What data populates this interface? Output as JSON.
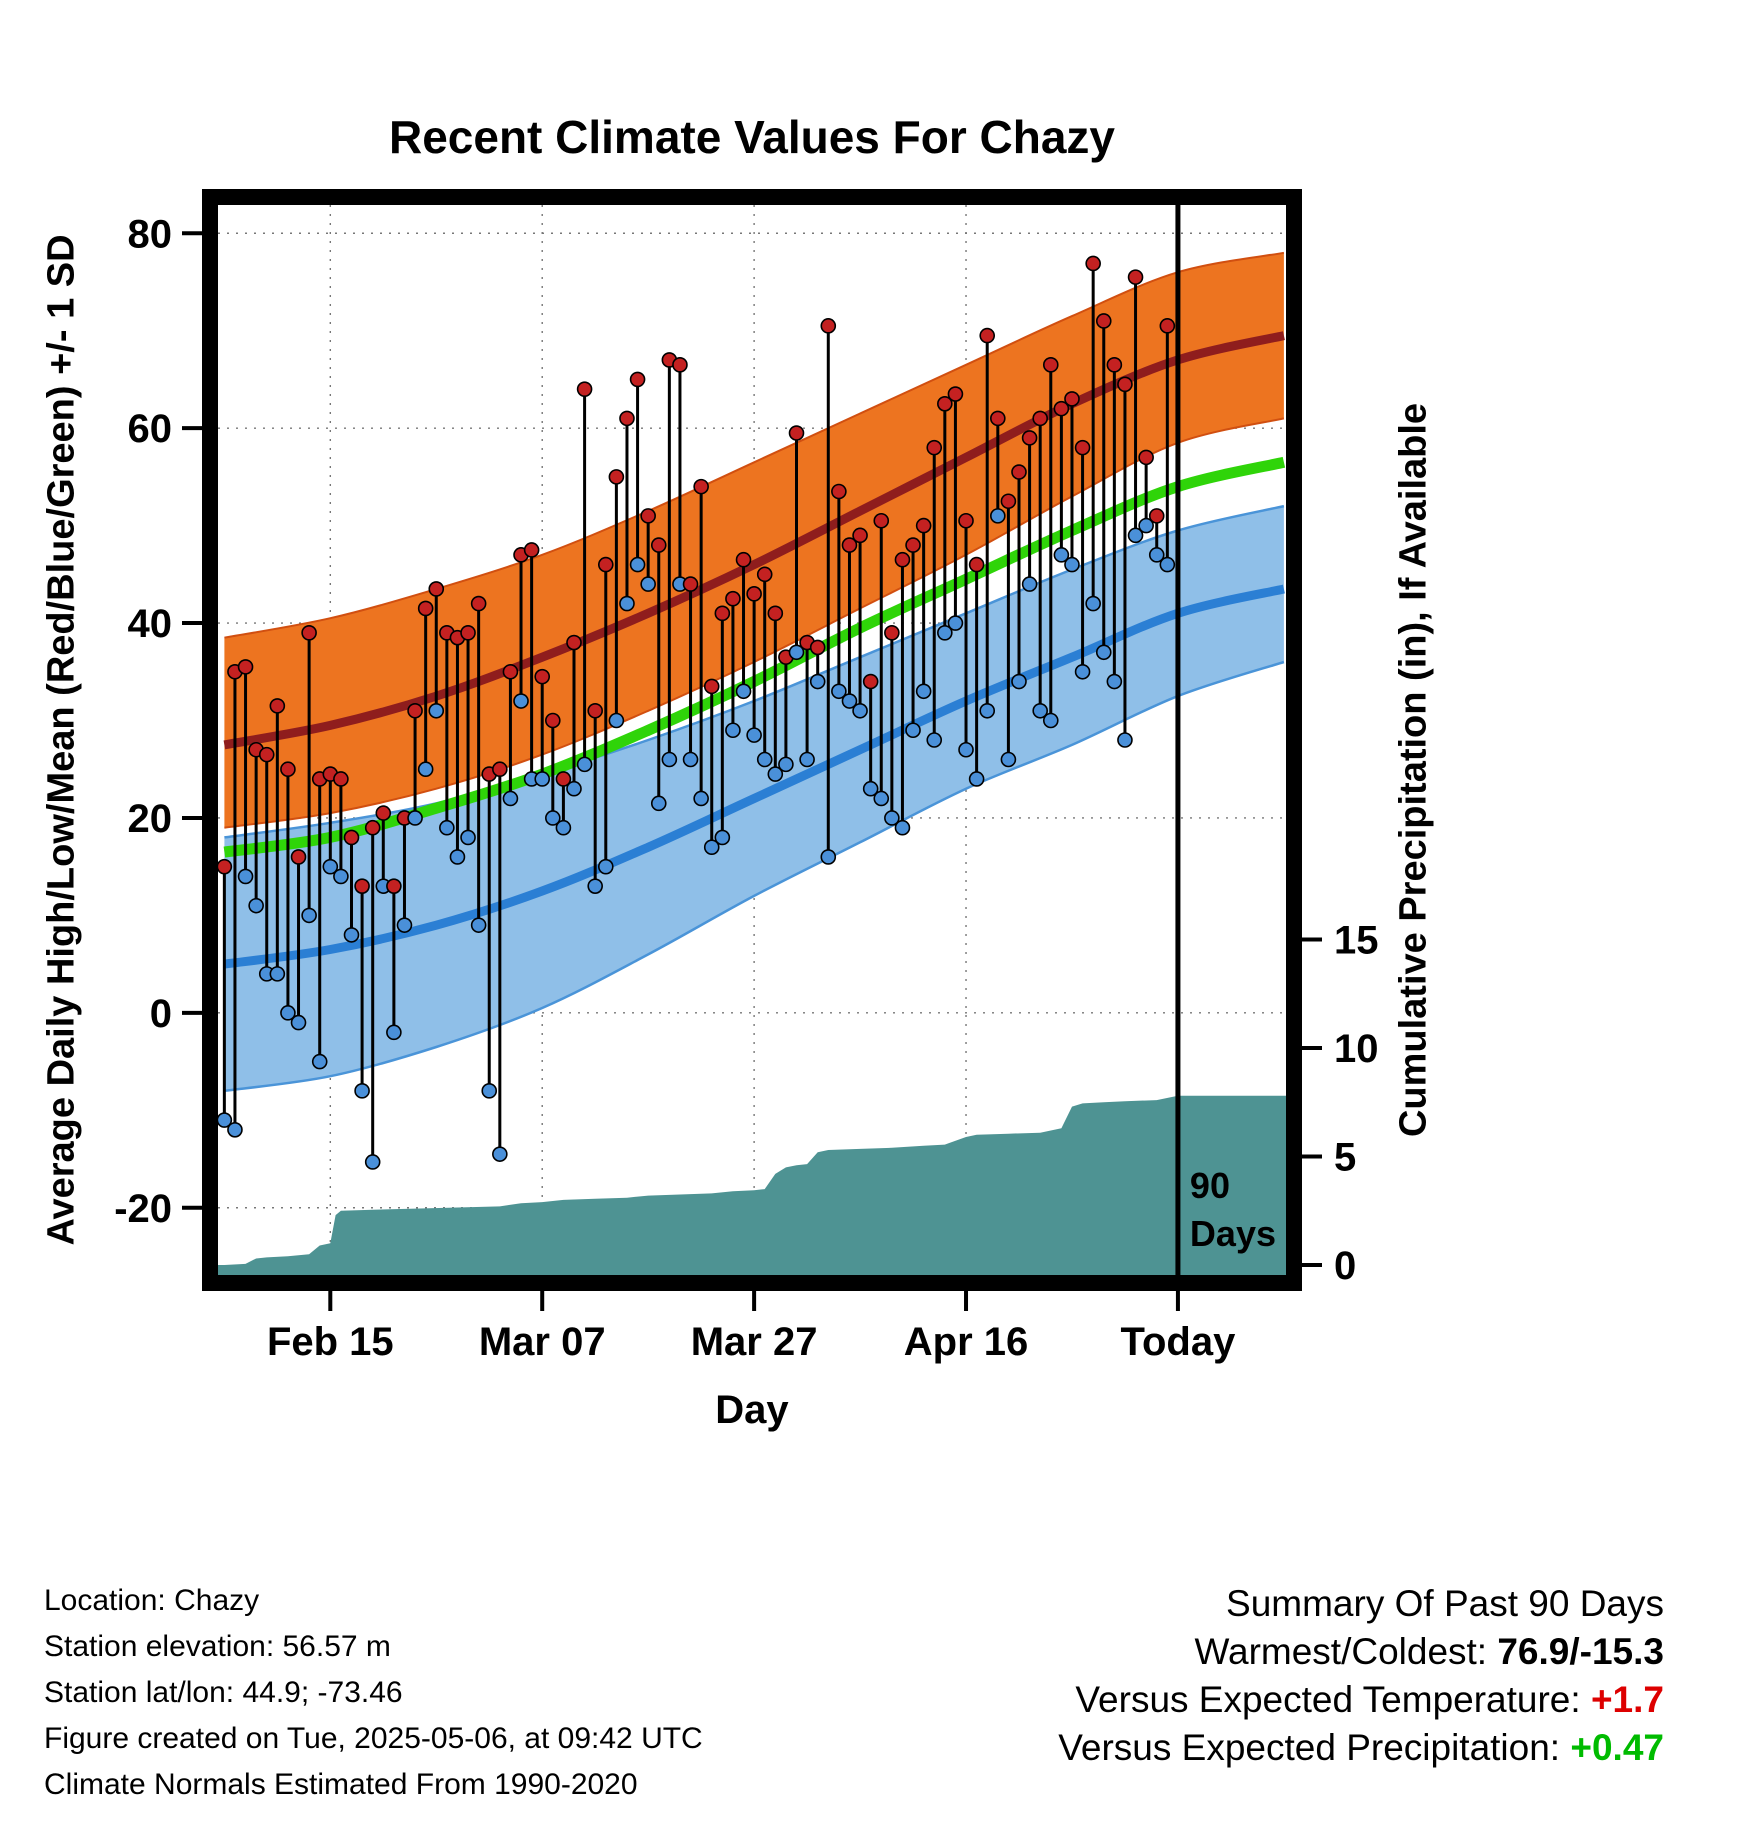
{
  "title": "Recent Climate Values For Chazy",
  "left_axis_label": "Average Daily High/Low/Mean (Red/Blue/Green) +/- 1 SD",
  "right_axis_label": "Cumulative Precipitation (in), If Available",
  "x_axis_label": "Day",
  "annotation": {
    "day": 90,
    "lines": [
      "90",
      "Days"
    ]
  },
  "footer": {
    "location": "Location: Chazy",
    "elevation": "Station elevation: 56.57 m",
    "latlon": "Station lat/lon: 44.9; -73.46",
    "created": "Figure created on Tue, 2025-05-06, at 09:42 UTC",
    "normals": "Climate Normals Estimated From 1990-2020"
  },
  "summary": {
    "heading": "Summary Of Past 90 Days",
    "warmest_coldest_label": "Warmest/Coldest:",
    "warmest_coldest_value": "76.9/-15.3",
    "vs_temp_label": "Versus Expected Temperature:",
    "vs_temp_value": "+1.7",
    "vs_precip_label": "Versus Expected Precipitation:",
    "vs_precip_value": "+0.47"
  },
  "colors": {
    "high_band": "#ED7420",
    "high_band_edge": "#D14F10",
    "high_line": "#8F1D1D",
    "low_band": "#8FBFE8",
    "low_band_edge": "#4A94D8",
    "low_line": "#2B7FD4",
    "mean_line": "#2FD409",
    "precip_fill": "#4E9393",
    "stem": "#000000",
    "high_dot": "#C42121",
    "low_dot": "#4A90D9",
    "grid": "#777777",
    "vs_temp": "#DD0000",
    "vs_precip": "#00BB00"
  },
  "chart_data": {
    "type": "line",
    "title": "Recent Climate Values For Chazy",
    "xlabel": "Day",
    "ylabel_left": "Average Daily High/Low/Mean (Red/Blue/Green) +/- 1 SD",
    "ylabel_right": "Cumulative Precipitation (in), If Available",
    "xlim_days": [
      -0.6,
      100.2
    ],
    "ylim_left": [
      -26.9,
      82.9
    ],
    "ylim_right": [
      -0.46,
      48.85
    ],
    "x_ticks": [
      {
        "day": 10,
        "label": "Feb 15"
      },
      {
        "day": 30,
        "label": "Mar 07"
      },
      {
        "day": 50,
        "label": "Mar 27"
      },
      {
        "day": 70,
        "label": "Apr 16"
      },
      {
        "day": 90,
        "label": "Today"
      }
    ],
    "y_ticks_left": [
      80,
      60,
      40,
      20,
      0,
      -20
    ],
    "y_ticks_right": [
      15,
      10,
      5,
      0
    ],
    "climatology": {
      "days": [
        0,
        10,
        20,
        30,
        40,
        50,
        60,
        70,
        80,
        90,
        100
      ],
      "high_upper": [
        38.5,
        40.5,
        43.5,
        47,
        51.5,
        56.5,
        61.5,
        66.5,
        71.5,
        76,
        78
      ],
      "high_mean": [
        27.5,
        29.5,
        32.5,
        36.5,
        41,
        46,
        51.5,
        57,
        62.5,
        67,
        69.5
      ],
      "high_lower": [
        19,
        20.5,
        23,
        26.5,
        31,
        36,
        41.5,
        47,
        53,
        58.5,
        61
      ],
      "low_upper": [
        18,
        19.5,
        21.5,
        24.5,
        28,
        32,
        36.5,
        41,
        45.5,
        49.5,
        52
      ],
      "low_mean": [
        5,
        6.5,
        9,
        12.5,
        17,
        22,
        27,
        32,
        36.5,
        41,
        43.5
      ],
      "low_lower": [
        -8,
        -6.5,
        -3.5,
        0.5,
        6,
        12,
        17.5,
        23,
        27.5,
        32.5,
        36
      ],
      "mean": [
        16.5,
        18,
        21,
        24.5,
        29,
        34,
        39.5,
        44.5,
        49.5,
        54,
        56.5
      ]
    },
    "daily": {
      "first_day_index": 0,
      "high": [
        15,
        35,
        35.5,
        27,
        26.5,
        31.5,
        25,
        16,
        39,
        24,
        24.5,
        24,
        18,
        13,
        19,
        20.5,
        13,
        20,
        31,
        41.5,
        43.5,
        39,
        38.5,
        39,
        42,
        24.5,
        25,
        35,
        47,
        47.5,
        34.5,
        30,
        24,
        38,
        64,
        31,
        46,
        55,
        61,
        65,
        51,
        48,
        67,
        66.5,
        44,
        54,
        33.5,
        41,
        42.5,
        46.5,
        43,
        45,
        41,
        36.5,
        59.5,
        38,
        37.5,
        70.5,
        53.5,
        48,
        49,
        34,
        50.5,
        39,
        46.5,
        48,
        50,
        58,
        62.5,
        63.5,
        50.5,
        46,
        69.5,
        61,
        52.5,
        55.5,
        59,
        61,
        66.5,
        62,
        63,
        58,
        76.9,
        71,
        66.5,
        64.5,
        75.5,
        57,
        51,
        70.5
      ],
      "low": [
        -11,
        -12,
        14,
        11,
        4,
        4,
        0,
        -1,
        10,
        -5,
        15,
        14,
        8,
        -8,
        -15.3,
        13,
        -2,
        9,
        20,
        25,
        31,
        19,
        16,
        18,
        9,
        -8,
        -14.5,
        22,
        32,
        24,
        24,
        20,
        19,
        23,
        25.5,
        13,
        15,
        30,
        42,
        46,
        44,
        21.5,
        26,
        44,
        26,
        22,
        17,
        18,
        29,
        33,
        28.5,
        26,
        24.5,
        25.5,
        37,
        26,
        34,
        16,
        33,
        32,
        31,
        23,
        22,
        20,
        19,
        29,
        33,
        28,
        39,
        40,
        27,
        24,
        31,
        51,
        26,
        34,
        44,
        31,
        30,
        47,
        46,
        35,
        42,
        37,
        34,
        28,
        49,
        50,
        47,
        46
      ]
    },
    "cumulative_precip": {
      "days": [
        0,
        2,
        3,
        4,
        6,
        7,
        8,
        9,
        10,
        10.5,
        11,
        14,
        18,
        22,
        26,
        28,
        30,
        32,
        35,
        38,
        40,
        43,
        46,
        48,
        50,
        51,
        52,
        53,
        54,
        55,
        56,
        57,
        60,
        63,
        66,
        68,
        70,
        71,
        74,
        77,
        79,
        80,
        81,
        83,
        85,
        88,
        90,
        100
      ],
      "values": [
        0,
        0.05,
        0.3,
        0.35,
        0.4,
        0.45,
        0.5,
        0.9,
        1.0,
        2.3,
        2.5,
        2.55,
        2.6,
        2.65,
        2.7,
        2.85,
        2.9,
        3.0,
        3.05,
        3.1,
        3.2,
        3.25,
        3.3,
        3.4,
        3.45,
        3.5,
        4.2,
        4.5,
        4.6,
        4.65,
        5.2,
        5.3,
        5.35,
        5.4,
        5.5,
        5.55,
        5.9,
        6.0,
        6.05,
        6.1,
        6.3,
        7.3,
        7.45,
        7.5,
        7.55,
        7.6,
        7.8,
        7.8
      ]
    }
  }
}
